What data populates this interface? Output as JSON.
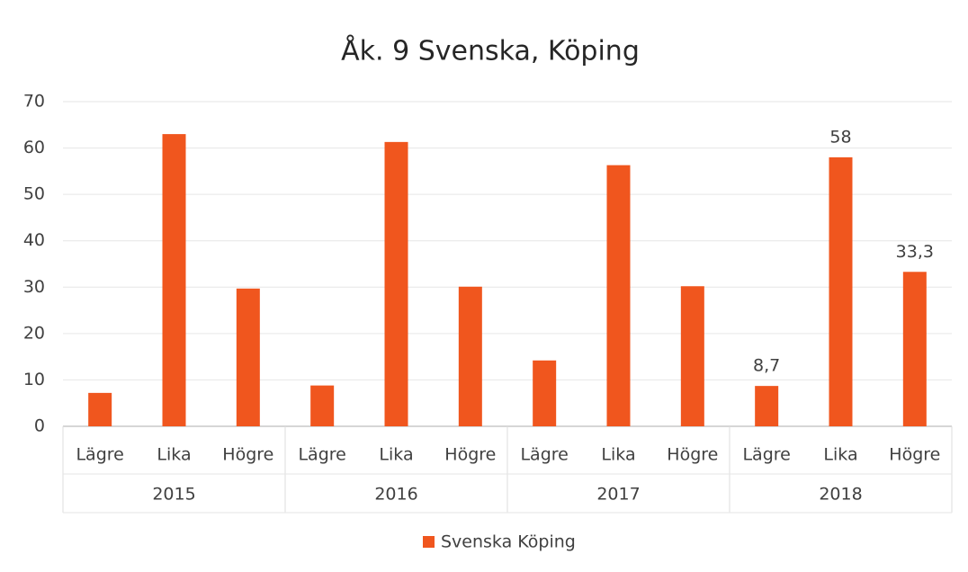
{
  "chart_data": {
    "type": "bar",
    "title": "Åk. 9 Svenska, Köping",
    "categories": [
      "Lägre",
      "Lika",
      "Högre",
      "Lägre",
      "Lika",
      "Högre",
      "Lägre",
      "Lika",
      "Högre",
      "Lägre",
      "Lika",
      "Högre"
    ],
    "category_groups": [
      "2015",
      "2016",
      "2017",
      "2018"
    ],
    "series": [
      {
        "name": "Svenska Köping",
        "color": "#f0561e",
        "values": [
          7.2,
          63,
          29.7,
          8.8,
          61.3,
          30.1,
          14.2,
          56.3,
          30.2,
          8.7,
          58,
          33.3
        ],
        "value_labels": [
          null,
          null,
          null,
          null,
          null,
          null,
          null,
          null,
          null,
          "8,7",
          "58",
          "33,3"
        ]
      }
    ],
    "ylim": [
      0,
      70
    ],
    "yticks": [
      0,
      10,
      20,
      30,
      40,
      50,
      60,
      70
    ],
    "grid": true,
    "legend": "bottom"
  }
}
